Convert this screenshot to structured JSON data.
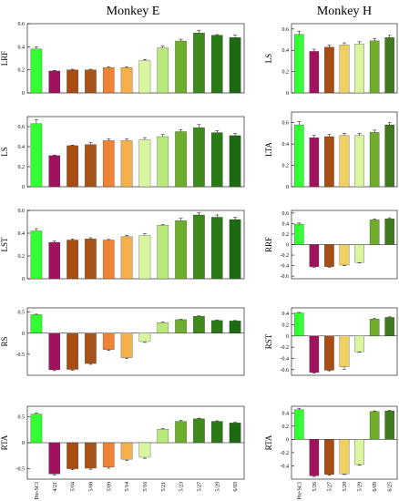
{
  "titles": {
    "left": "Monkey E",
    "right": "Monkey H"
  },
  "chart_data": [
    {
      "type": "bar",
      "group": "Monkey E",
      "ylabel": "LRF",
      "ylim": [
        0,
        0.6
      ],
      "yticks": [
        0,
        0.2,
        0.4,
        0.6
      ],
      "categories": [
        "Pre-SCI",
        "4/21",
        "5/04",
        "5/08",
        "5/09",
        "5/14",
        "5/16",
        "5/21",
        "5/23",
        "5/27",
        "5/29",
        "6/03"
      ],
      "values": [
        0.38,
        0.19,
        0.2,
        0.2,
        0.22,
        0.22,
        0.28,
        0.39,
        0.45,
        0.52,
        0.5,
        0.48
      ],
      "errors": [
        0.02,
        0.005,
        0.005,
        0.005,
        0.005,
        0.005,
        0.01,
        0.015,
        0.015,
        0.02,
        0.005,
        0.02
      ],
      "show_xticklabels": false
    },
    {
      "type": "bar",
      "group": "Monkey E",
      "ylabel": "LS",
      "ylim": [
        0,
        0.7
      ],
      "yticks": [
        0,
        0.2,
        0.4,
        0.6
      ],
      "categories": [
        "Pre-SCI",
        "4/21",
        "5/04",
        "5/08",
        "5/09",
        "5/14",
        "5/16",
        "5/21",
        "5/23",
        "5/27",
        "5/29",
        "6/03"
      ],
      "values": [
        0.63,
        0.31,
        0.41,
        0.42,
        0.46,
        0.46,
        0.47,
        0.5,
        0.55,
        0.59,
        0.54,
        0.51
      ],
      "errors": [
        0.04,
        0.005,
        0.005,
        0.02,
        0.02,
        0.02,
        0.02,
        0.02,
        0.02,
        0.03,
        0.02,
        0.02
      ],
      "show_xticklabels": false
    },
    {
      "type": "bar",
      "group": "Monkey E",
      "ylabel": "LST",
      "ylim": [
        0,
        0.6
      ],
      "yticks": [
        0,
        0.2,
        0.4,
        0.6
      ],
      "categories": [
        "Pre-SCI",
        "4/21",
        "5/04",
        "5/08",
        "5/09",
        "5/14",
        "5/16",
        "5/21",
        "5/23",
        "5/27",
        "5/29",
        "6/03"
      ],
      "values": [
        0.42,
        0.32,
        0.34,
        0.35,
        0.34,
        0.37,
        0.38,
        0.47,
        0.51,
        0.56,
        0.54,
        0.52
      ],
      "errors": [
        0.02,
        0.01,
        0.01,
        0.01,
        0.005,
        0.01,
        0.015,
        0.005,
        0.02,
        0.02,
        0.02,
        0.02
      ],
      "show_xticklabels": false
    },
    {
      "type": "bar",
      "group": "Monkey E",
      "ylabel": "RS",
      "ylim": [
        -1.0,
        0.6
      ],
      "yticks": [
        -0.5,
        0,
        0.5
      ],
      "categories": [
        "Pre-SCI",
        "4/21",
        "5/04",
        "5/08",
        "5/09",
        "5/14",
        "5/16",
        "5/21",
        "5/23",
        "5/27",
        "5/29",
        "6/03"
      ],
      "values": [
        0.44,
        -0.87,
        -0.86,
        -0.72,
        -0.39,
        -0.58,
        -0.2,
        0.25,
        0.32,
        0.4,
        0.3,
        0.29
      ],
      "errors": [
        0.01,
        0.02,
        0.02,
        0.02,
        0.02,
        0.02,
        0.02,
        0.01,
        0.01,
        0.01,
        0.01,
        0.01
      ],
      "show_xticklabels": false
    },
    {
      "type": "bar",
      "group": "Monkey E",
      "ylabel": "RTA",
      "ylim": [
        -0.7,
        0.7
      ],
      "yticks": [
        -0.5,
        0,
        0.5
      ],
      "categories": [
        "Pre-SCI",
        "4/21",
        "5/04",
        "5/08",
        "5/09",
        "5/14",
        "5/16",
        "5/21",
        "5/23",
        "5/27",
        "5/29",
        "6/03"
      ],
      "values": [
        0.55,
        -0.6,
        -0.5,
        -0.49,
        -0.47,
        -0.32,
        -0.28,
        0.26,
        0.41,
        0.46,
        0.41,
        0.38
      ],
      "errors": [
        0.02,
        0.02,
        0.02,
        0.02,
        0.02,
        0.02,
        0.02,
        0.01,
        0.02,
        0.01,
        0.01,
        0.01
      ],
      "show_xticklabels": true
    },
    {
      "type": "bar",
      "group": "Monkey H",
      "ylabel": "LS",
      "ylim": [
        0,
        0.65
      ],
      "yticks": [
        0,
        0.2,
        0.4,
        0.6
      ],
      "categories": [
        "Pre-SCI",
        "5/26",
        "5/27",
        "5/28",
        "5/29",
        "6/09",
        "6/25"
      ],
      "values": [
        0.55,
        0.39,
        0.43,
        0.45,
        0.46,
        0.49,
        0.52
      ],
      "errors": [
        0.03,
        0.02,
        0.02,
        0.02,
        0.02,
        0.02,
        0.02
      ],
      "show_xticklabels": false
    },
    {
      "type": "bar",
      "group": "Monkey H",
      "ylabel": "LTA",
      "ylim": [
        0,
        0.7
      ],
      "yticks": [
        0,
        0.2,
        0.4,
        0.6
      ],
      "categories": [
        "Pre-SCI",
        "5/26",
        "5/27",
        "5/28",
        "5/29",
        "6/09",
        "6/25"
      ],
      "values": [
        0.58,
        0.46,
        0.47,
        0.48,
        0.48,
        0.51,
        0.58
      ],
      "errors": [
        0.03,
        0.02,
        0.02,
        0.02,
        0.02,
        0.02,
        0.02
      ],
      "show_xticklabels": false
    },
    {
      "type": "bar",
      "group": "Monkey H",
      "ylabel": "RRF",
      "ylim": [
        -0.65,
        0.65
      ],
      "yticks": [
        -0.6,
        -0.4,
        -0.2,
        0,
        0.2,
        0.4,
        0.6
      ],
      "categories": [
        "Pre-SCI",
        "5/26",
        "5/27",
        "5/28",
        "5/29",
        "6/09",
        "6/25"
      ],
      "values": [
        0.39,
        -0.42,
        -0.42,
        -0.39,
        -0.34,
        0.47,
        0.49
      ],
      "errors": [
        0.02,
        0.01,
        0.01,
        0.01,
        0.01,
        0.02,
        0.02
      ],
      "show_xticklabels": false
    },
    {
      "type": "bar",
      "group": "Monkey H",
      "ylabel": "RST",
      "ylim": [
        -0.7,
        0.5
      ],
      "yticks": [
        -0.6,
        -0.4,
        -0.2,
        0,
        0.2,
        0.4
      ],
      "categories": [
        "Pre-SCI",
        "5/26",
        "5/27",
        "5/28",
        "5/29",
        "6/09",
        "6/25"
      ],
      "values": [
        0.41,
        -0.65,
        -0.61,
        -0.55,
        -0.28,
        0.3,
        0.33
      ],
      "errors": [
        0.01,
        0.01,
        0.01,
        0.04,
        0.01,
        0.01,
        0.01
      ],
      "show_xticklabels": false
    },
    {
      "type": "bar",
      "group": "Monkey H",
      "ylabel": "RTA",
      "ylim": [
        -0.6,
        0.5
      ],
      "yticks": [
        -0.4,
        -0.2,
        0,
        0.2,
        0.4
      ],
      "categories": [
        "Pre-SCI",
        "5/26",
        "5/27",
        "5/28",
        "5/29",
        "6/09",
        "6/25"
      ],
      "values": [
        0.45,
        -0.55,
        -0.53,
        -0.52,
        -0.38,
        0.42,
        0.43
      ],
      "errors": [
        0.02,
        0.01,
        0.01,
        0.01,
        0.01,
        0.01,
        0.01
      ],
      "show_xticklabels": true
    }
  ],
  "colors": {
    "Monkey E": [
      "#33ff33",
      "#a0125e",
      "#a84c14",
      "#a85418",
      "#ee8333",
      "#f5b04c",
      "#d8f5a0",
      "#b8ea7a",
      "#6fae2c",
      "#3f8a1c",
      "#2a7a18",
      "#1e6a12"
    ],
    "Monkey H": [
      "#33ff33",
      "#a0125e",
      "#a84c14",
      "#f0d060",
      "#d8f5a0",
      "#6fae2c",
      "#3f7a1c"
    ]
  }
}
